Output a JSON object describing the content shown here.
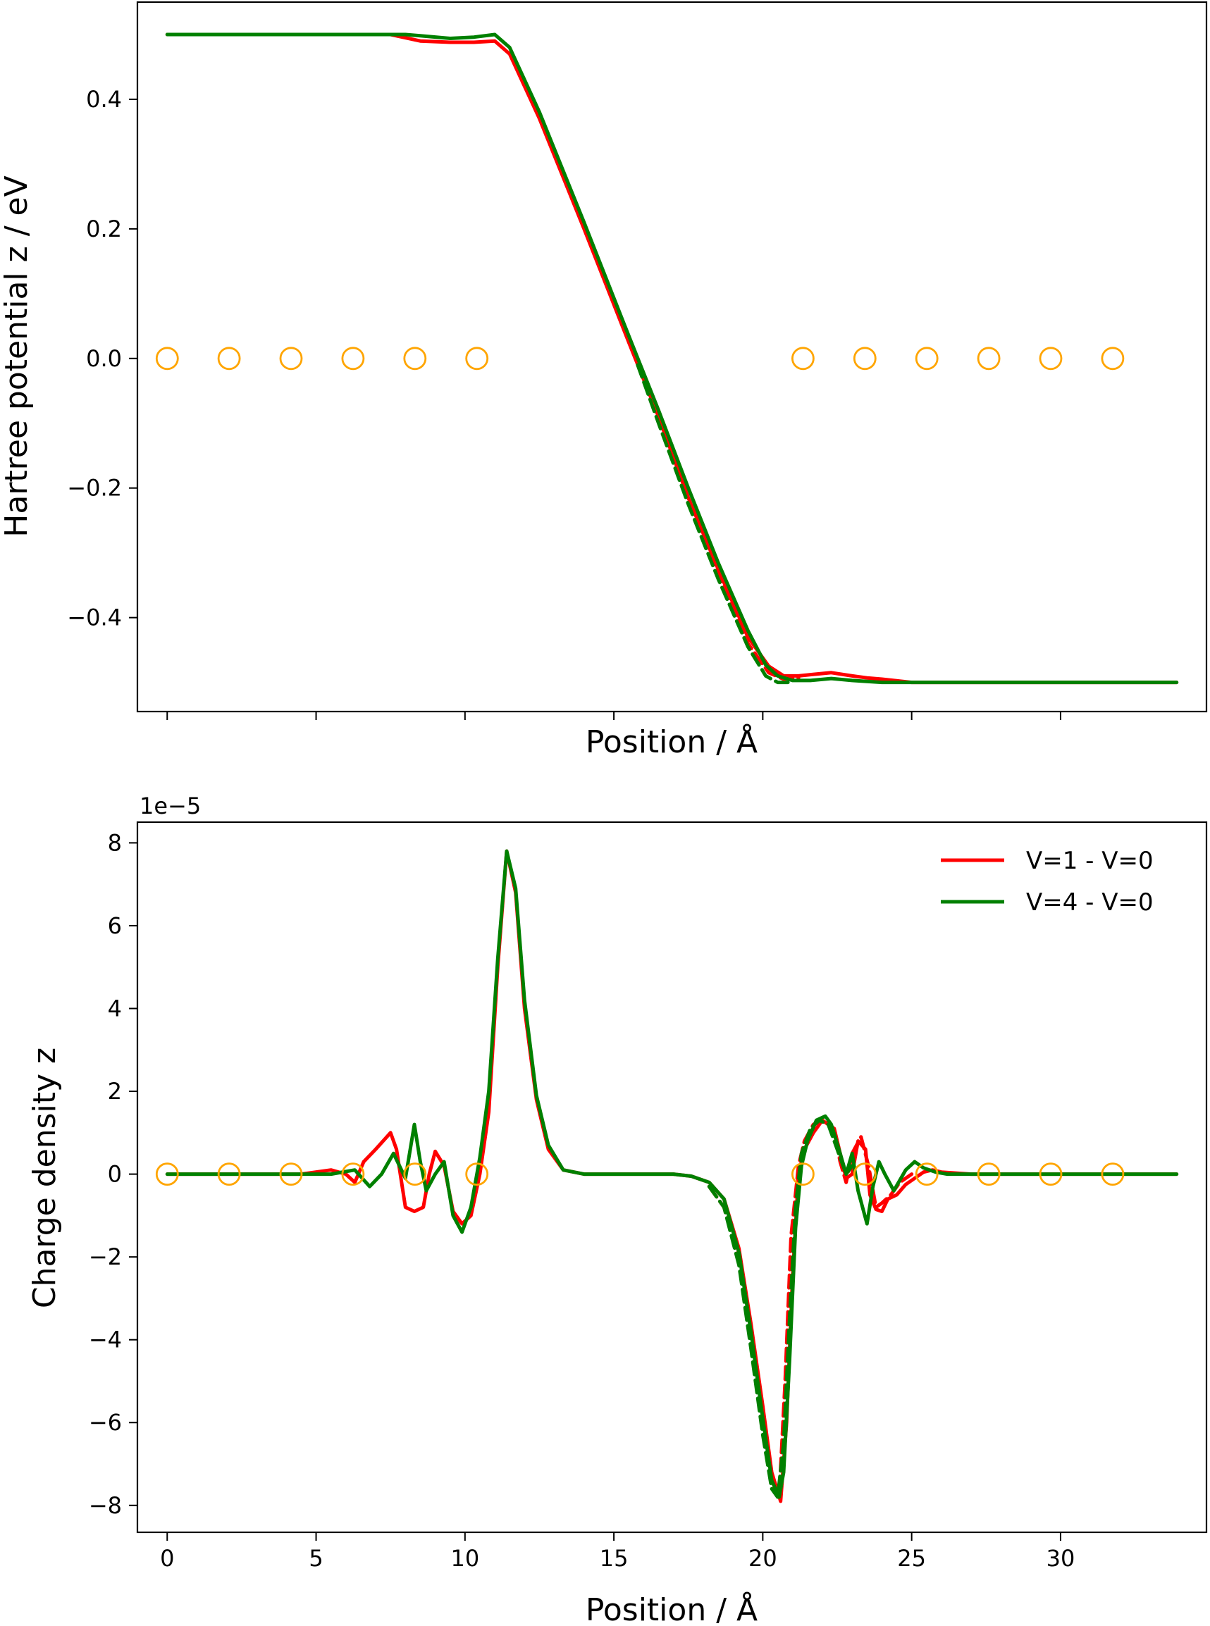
{
  "chart_data": [
    {
      "type": "line",
      "title": "",
      "xlabel": "Position / Å",
      "ylabel": "Hartree potential z / eV",
      "xlim": [
        -1.0,
        34.9
      ],
      "ylim": [
        -0.545,
        0.55
      ],
      "xticks": [
        0,
        5,
        10,
        15,
        20,
        25,
        30
      ],
      "show_xtick_labels": false,
      "yticks": [
        {
          "value": -0.4,
          "label": "−0.4"
        },
        {
          "value": -0.2,
          "label": "−0.2"
        },
        {
          "value": 0.0,
          "label": "0.0"
        },
        {
          "value": 0.2,
          "label": "0.2"
        },
        {
          "value": 0.4,
          "label": "0.4"
        }
      ],
      "grid": false,
      "atoms": {
        "x": [
          0.0,
          2.08,
          4.16,
          6.24,
          8.32,
          10.4,
          21.35,
          23.43,
          25.51,
          27.59,
          29.67,
          31.75
        ],
        "y": 0,
        "color": "#ffa500",
        "marker": "open-circle"
      },
      "series": [
        {
          "color": "#ff0000",
          "style": "solid",
          "x": [
            0,
            5,
            6.5,
            7.5,
            8.5,
            9.5,
            10.3,
            11.0,
            11.5,
            12.5,
            14.0,
            15.5,
            16.5,
            17.5,
            18.5,
            19.5,
            20.2,
            20.7,
            21.2,
            21.6,
            22.3,
            23.0,
            23.5,
            24.0,
            25.0,
            26.0,
            30.0,
            33.9
          ],
          "y": [
            0.5,
            0.5,
            0.5,
            0.5,
            0.49,
            0.488,
            0.488,
            0.49,
            0.47,
            0.37,
            0.2,
            0.025,
            -0.09,
            -0.215,
            -0.325,
            -0.43,
            -0.475,
            -0.49,
            -0.49,
            -0.488,
            -0.485,
            -0.49,
            -0.493,
            -0.495,
            -0.5,
            -0.5,
            -0.5,
            -0.5
          ]
        },
        {
          "color": "#ff0000",
          "style": "dashed",
          "x": [
            15.8,
            16.5,
            17.5,
            18.5,
            19.5,
            20.2,
            20.7,
            21.2
          ],
          "y": [
            -0.01,
            -0.095,
            -0.22,
            -0.33,
            -0.44,
            -0.485,
            -0.495,
            -0.493
          ]
        },
        {
          "color": "#008000",
          "style": "solid",
          "x": [
            0,
            5,
            6.5,
            7.5,
            8.0,
            8.5,
            9.5,
            10.3,
            11.0,
            11.5,
            12.5,
            14.0,
            15.5,
            16.5,
            17.5,
            18.5,
            19.5,
            20.1,
            20.5,
            21.0,
            21.6,
            22.3,
            23.0,
            24.0,
            25.0,
            30.0,
            33.9
          ],
          "y": [
            0.5,
            0.5,
            0.5,
            0.5,
            0.5,
            0.498,
            0.494,
            0.496,
            0.5,
            0.48,
            0.38,
            0.21,
            0.035,
            -0.08,
            -0.2,
            -0.315,
            -0.42,
            -0.473,
            -0.49,
            -0.497,
            -0.497,
            -0.494,
            -0.497,
            -0.5,
            -0.5,
            -0.5,
            -0.5
          ]
        },
        {
          "color": "#008000",
          "style": "dashed",
          "x": [
            15.8,
            16.5,
            17.5,
            18.5,
            19.5,
            20.1,
            20.5,
            21.0
          ],
          "y": [
            -0.01,
            -0.1,
            -0.225,
            -0.34,
            -0.445,
            -0.49,
            -0.5,
            -0.5
          ]
        }
      ]
    },
    {
      "type": "line",
      "title": "",
      "xlabel": "Position / Å",
      "ylabel": "Charge density z",
      "y_offset_text": "1e−5",
      "xlim": [
        -1.0,
        34.9
      ],
      "ylim": [
        -8.65,
        8.5
      ],
      "xticks": [
        0,
        5,
        10,
        15,
        20,
        25,
        30
      ],
      "xticklabels": [
        "0",
        "5",
        "10",
        "15",
        "20",
        "25",
        "30"
      ],
      "yticks": [
        {
          "value": -8,
          "label": "−8"
        },
        {
          "value": -6,
          "label": "−6"
        },
        {
          "value": -4,
          "label": "−4"
        },
        {
          "value": -2,
          "label": "−2"
        },
        {
          "value": 0,
          "label": "0"
        },
        {
          "value": 2,
          "label": "2"
        },
        {
          "value": 4,
          "label": "4"
        },
        {
          "value": 6,
          "label": "6"
        },
        {
          "value": 8,
          "label": "8"
        }
      ],
      "grid": false,
      "legend": {
        "position": "top-right",
        "entries": [
          {
            "label": "V=1 - V=0",
            "color": "#ff0000"
          },
          {
            "label": "V=4 - V=0",
            "color": "#008000"
          }
        ]
      },
      "atoms": {
        "x": [
          0.0,
          2.08,
          4.16,
          6.24,
          8.32,
          10.4,
          21.35,
          23.43,
          25.51,
          27.59,
          29.67,
          31.75
        ],
        "y": 0,
        "color": "#ffa500",
        "marker": "open-circle"
      },
      "series": [
        {
          "name": "V=1 - V=0",
          "color": "#ff0000",
          "style": "solid",
          "x": [
            0,
            4.5,
            5.5,
            6.0,
            6.3,
            6.6,
            7.0,
            7.5,
            7.7,
            8.0,
            8.3,
            8.6,
            8.8,
            9.0,
            9.3,
            9.6,
            9.9,
            10.2,
            10.5,
            10.8,
            11.1,
            11.4,
            11.7,
            12.0,
            12.4,
            12.8,
            13.3,
            14.0,
            15.0,
            16.0,
            17.0,
            17.6,
            18.2,
            18.7,
            19.2,
            19.6,
            20.0,
            20.3,
            20.6,
            20.8,
            21.0,
            21.2,
            21.4,
            21.7,
            22.0,
            22.2,
            22.4,
            22.6,
            22.8,
            23.0,
            23.2,
            23.45,
            23.6,
            23.8,
            24.0,
            24.2,
            24.5,
            24.8,
            25.1,
            25.4,
            25.7,
            26.0,
            27.0,
            30.0,
            33.9
          ],
          "y": [
            0,
            0,
            0.1,
            0.0,
            -0.2,
            0.3,
            0.6,
            1.0,
            0.6,
            -0.8,
            -0.9,
            -0.8,
            0.0,
            0.55,
            0.2,
            -0.9,
            -1.2,
            -1.0,
            0.0,
            1.5,
            5.0,
            7.8,
            6.8,
            4.0,
            1.8,
            0.6,
            0.1,
            0.0,
            0.0,
            0.0,
            0.0,
            -0.05,
            -0.2,
            -0.6,
            -1.8,
            -3.6,
            -5.6,
            -7.2,
            -7.9,
            -6.0,
            -2.5,
            0.0,
            0.6,
            1.0,
            1.3,
            1.2,
            1.1,
            0.5,
            -0.1,
            0.0,
            0.8,
            0.6,
            -0.5,
            -0.85,
            -0.9,
            -0.6,
            -0.5,
            -0.25,
            -0.1,
            0.05,
            0.1,
            0.05,
            0.0,
            0.0,
            0.0
          ]
        },
        {
          "name": "",
          "color": "#ff0000",
          "style": "dashed",
          "x": [
            18.2,
            18.7,
            19.2,
            19.6,
            20.0,
            20.3,
            20.55,
            20.75,
            20.95,
            21.2,
            21.4,
            21.7,
            22.0,
            22.2,
            22.4,
            22.6,
            22.8,
            23.0,
            23.3,
            23.55,
            23.8,
            24.0,
            24.3,
            24.6,
            25.0
          ],
          "y": [
            -0.3,
            -0.8,
            -2.1,
            -4.0,
            -6.0,
            -7.5,
            -7.8,
            -5.0,
            -1.5,
            0.2,
            0.8,
            1.2,
            1.3,
            1.2,
            1.0,
            0.3,
            -0.2,
            0.5,
            0.9,
            0.2,
            -0.8,
            -0.7,
            -0.5,
            -0.2,
            0.0
          ]
        },
        {
          "name": "V=4 - V=0",
          "color": "#008000",
          "style": "solid",
          "x": [
            0,
            5.5,
            6.3,
            6.8,
            7.2,
            7.6,
            8.0,
            8.3,
            8.5,
            8.7,
            9.0,
            9.3,
            9.6,
            9.9,
            10.2,
            10.5,
            10.8,
            11.1,
            11.4,
            11.7,
            12.0,
            12.4,
            12.8,
            13.3,
            14.0,
            15.0,
            16.0,
            17.0,
            17.6,
            18.2,
            18.7,
            19.2,
            19.6,
            20.0,
            20.3,
            20.55,
            20.7,
            20.9,
            21.1,
            21.3,
            21.5,
            21.8,
            22.1,
            22.3,
            22.6,
            22.8,
            23.0,
            23.2,
            23.5,
            23.7,
            23.9,
            24.1,
            24.4,
            24.8,
            25.1,
            25.4,
            25.8,
            26.2,
            27.0,
            30.0,
            33.9
          ],
          "y": [
            0,
            0,
            0.1,
            -0.3,
            0.0,
            0.5,
            -0.1,
            1.2,
            0.3,
            -0.4,
            0.0,
            0.3,
            -1.0,
            -1.4,
            -0.8,
            0.4,
            2.0,
            5.2,
            7.8,
            6.9,
            4.2,
            1.9,
            0.7,
            0.1,
            0.0,
            0.0,
            0.0,
            0.0,
            -0.05,
            -0.2,
            -0.6,
            -1.9,
            -3.8,
            -5.9,
            -7.4,
            -7.8,
            -7.2,
            -4.5,
            -1.3,
            0.2,
            0.8,
            1.3,
            1.4,
            1.2,
            0.5,
            0.0,
            0.5,
            -0.4,
            -1.2,
            -0.3,
            0.3,
            0.0,
            -0.4,
            0.1,
            0.3,
            0.15,
            0.05,
            0.0,
            0.0,
            0.0,
            0.0
          ]
        },
        {
          "name": "",
          "color": "#008000",
          "style": "dashed",
          "x": [
            18.2,
            18.7,
            19.2,
            19.6,
            20.0,
            20.3,
            20.5,
            20.7,
            20.9,
            21.1,
            21.3,
            21.6,
            21.9,
            22.2,
            22.5,
            22.8,
            23.0
          ],
          "y": [
            -0.3,
            -0.8,
            -2.2,
            -4.2,
            -6.3,
            -7.6,
            -7.8,
            -6.5,
            -3.5,
            -0.8,
            0.5,
            1.1,
            1.3,
            1.2,
            0.6,
            0.0,
            0.2
          ]
        }
      ]
    }
  ]
}
